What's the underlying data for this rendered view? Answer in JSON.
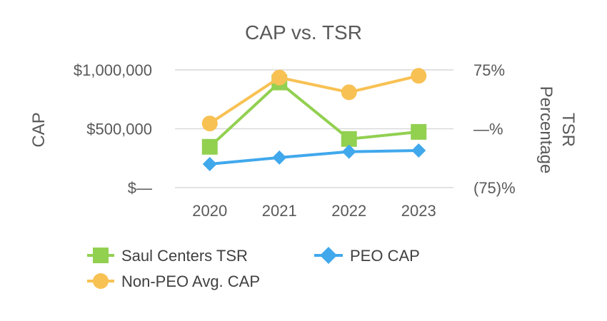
{
  "chart_data": {
    "type": "line",
    "title": "CAP vs. TSR",
    "categories": [
      "2020",
      "2021",
      "2022",
      "2023"
    ],
    "y_left": {
      "label": "CAP",
      "range": [
        0,
        1000000
      ],
      "ticks": [
        {
          "value": 0,
          "label": "$—"
        },
        {
          "value": 500000,
          "label": "$500,000"
        },
        {
          "value": 1000000,
          "label": "$1,000,000"
        }
      ]
    },
    "y_right": {
      "label_line1": "TSR",
      "label_line2": "Percentage",
      "range": [
        -75,
        75
      ],
      "ticks": [
        {
          "value": 75,
          "label": "75%"
        },
        {
          "value": 0,
          "label": "—%"
        },
        {
          "value": -75,
          "label": "(75)%"
        }
      ]
    },
    "series": [
      {
        "name": "Saul Centers TSR",
        "axis": "right",
        "marker": "square",
        "color": "#92d050",
        "values": [
          -23,
          59,
          -13,
          -4
        ]
      },
      {
        "name": "PEO CAP",
        "axis": "left",
        "marker": "diamond",
        "color": "#41a8ec",
        "values": [
          200000,
          255000,
          305000,
          315000
        ]
      },
      {
        "name": "Non-PEO Avg. CAP",
        "axis": "left",
        "marker": "circle",
        "color": "#f8c153",
        "values": [
          545000,
          935000,
          810000,
          950000
        ]
      }
    ],
    "grid": true,
    "legend": "bottom"
  }
}
